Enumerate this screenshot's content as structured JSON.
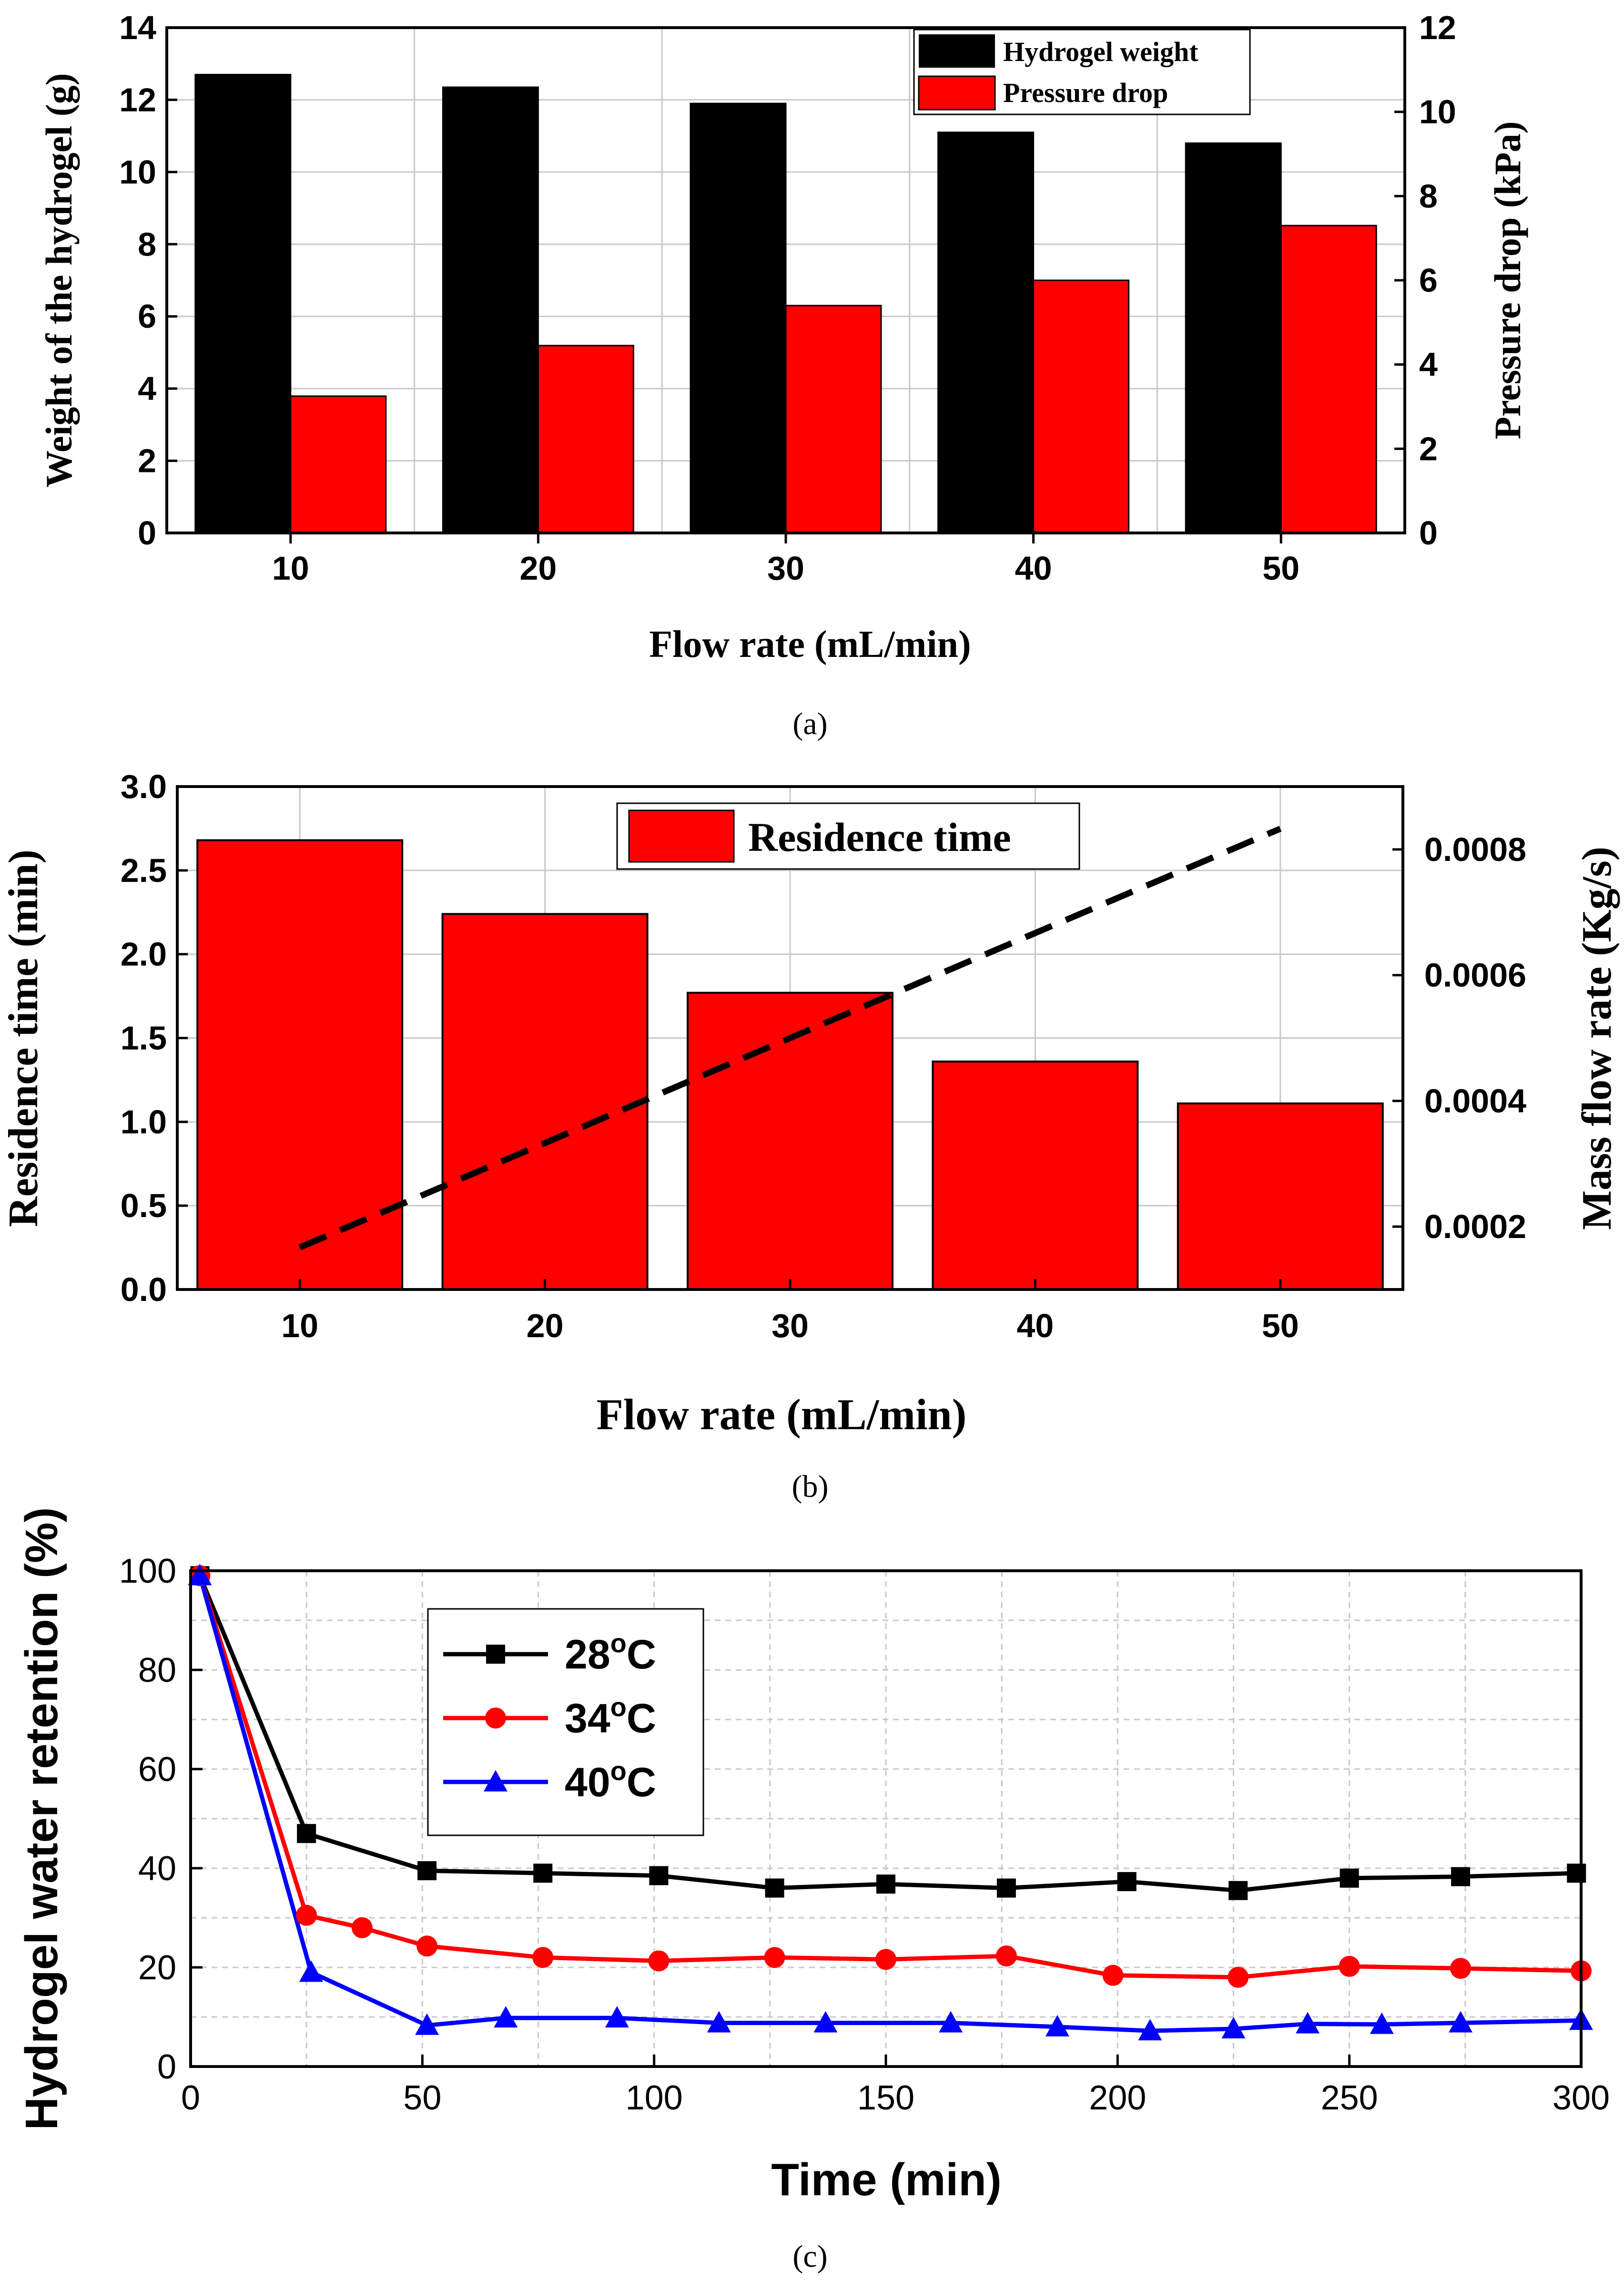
{
  "captions": [
    "(a)",
    "(b)",
    "(c)"
  ],
  "colors": {
    "black": "#000000",
    "red": "#ff0000",
    "blue": "#0000ff",
    "grid": "#c8c8c8"
  },
  "chart_data": [
    {
      "id": "a",
      "type": "bar",
      "categories": [
        "10",
        "20",
        "30",
        "40",
        "50"
      ],
      "xlabel": "Flow rate (mL/min)",
      "ylabel": "Weight of the hydrogel (g)",
      "ylabel_right": "Pressure drop (kPa)",
      "ylim": [
        0,
        14
      ],
      "yticks": [
        0,
        2,
        4,
        6,
        8,
        10,
        12,
        14
      ],
      "ylim_right": [
        0,
        12
      ],
      "yticks_right": [
        0,
        2,
        4,
        6,
        8,
        10,
        12
      ],
      "series": [
        {
          "name": "Hydrogel weight",
          "axis": "left",
          "color": "#000000",
          "values": [
            12.7,
            12.35,
            11.9,
            11.1,
            10.8
          ]
        },
        {
          "name": "Pressure drop",
          "axis": "right",
          "color": "#ff0000",
          "values": [
            3.25,
            4.45,
            5.4,
            6.0,
            7.3
          ]
        }
      ],
      "legend": "top-right",
      "grid": true
    },
    {
      "id": "b",
      "type": "bar",
      "categories": [
        "10",
        "20",
        "30",
        "40",
        "50"
      ],
      "xlabel": "Flow rate (mL/min)",
      "ylabel": "Residence time (min)",
      "ylabel_right": "Mass flow rate (Kg/s)",
      "ylim": [
        0,
        3.0
      ],
      "yticks": [
        "0.0",
        "0.5",
        "1.0",
        "1.5",
        "2.0",
        "2.5",
        "3.0"
      ],
      "ylim_right": [
        0.0001,
        0.0009
      ],
      "yticks_right": [
        "0.0002",
        "0.0004",
        "0.0006",
        "0.0008"
      ],
      "series": [
        {
          "name": "Residence time",
          "axis": "left",
          "color": "#ff0000",
          "values": [
            2.68,
            2.24,
            1.77,
            1.36,
            1.11
          ]
        },
        {
          "name": "Mass flow rate",
          "axis": "right",
          "type": "line",
          "style": "dashed",
          "color": "#000000",
          "values": [
            0.000167,
            0.000333,
            0.0005,
            0.000667,
            0.000833
          ]
        }
      ],
      "legend": "top-center",
      "grid": true
    },
    {
      "id": "c",
      "type": "line",
      "xlabel": "Time (min)",
      "ylabel": "Hydrogel water retention (%)",
      "xlim": [
        0,
        300
      ],
      "xticks": [
        0,
        50,
        100,
        150,
        200,
        250,
        300
      ],
      "ylim": [
        0,
        100
      ],
      "yticks": [
        0,
        20,
        40,
        60,
        80,
        100
      ],
      "series": [
        {
          "name": "28",
          "name_sup": "o",
          "name_suffix": "C",
          "color": "#000000",
          "marker": "square",
          "x": [
            2,
            25,
            51,
            76,
            101,
            126,
            150,
            176,
            202,
            226,
            250,
            274,
            299
          ],
          "y": [
            99,
            47,
            39.5,
            39,
            38.5,
            36,
            36.8,
            36,
            37.3,
            35.5,
            38,
            38.3,
            39
          ]
        },
        {
          "name": "34",
          "name_sup": "o",
          "name_suffix": "C",
          "color": "#ff0000",
          "marker": "circle",
          "x": [
            2,
            25,
            37,
            51,
            76,
            101,
            126,
            150,
            176,
            199,
            226,
            250,
            274,
            300
          ],
          "y": [
            99,
            30.5,
            28,
            24.3,
            22,
            21.3,
            22,
            21.6,
            22.3,
            18.4,
            18,
            20.2,
            19.8,
            19.3
          ]
        },
        {
          "name": "40",
          "name_sup": "o",
          "name_suffix": "C",
          "color": "#0000ff",
          "marker": "triangle",
          "x": [
            2,
            26,
            51,
            68,
            92,
            114,
            137,
            164,
            187,
            207,
            225,
            241,
            257,
            274,
            300
          ],
          "y": [
            99,
            19,
            8.3,
            9.8,
            9.8,
            8.8,
            8.8,
            8.8,
            8,
            7.2,
            7.6,
            8.6,
            8.5,
            8.8,
            9.3
          ]
        }
      ],
      "legend": "top-left",
      "grid": true
    }
  ]
}
